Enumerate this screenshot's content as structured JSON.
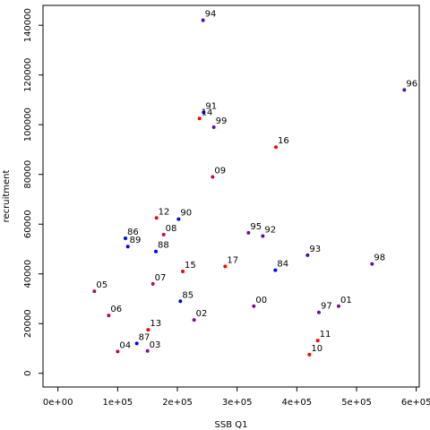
{
  "chart_data": {
    "type": "scatter",
    "title": "",
    "xlabel": "SSB Q1",
    "ylabel": "recruitment",
    "xlim": [
      -25000,
      605000
    ],
    "ylim": [
      -5500,
      148000
    ],
    "x_ticks": [
      0,
      100000,
      200000,
      300000,
      400000,
      500000,
      600000
    ],
    "x_tick_labels": [
      "0e+00",
      "1e+05",
      "2e+05",
      "3e+05",
      "4e+05",
      "5e+05",
      "6e+05"
    ],
    "y_ticks": [
      0,
      20000,
      40000,
      60000,
      80000,
      100000,
      120000,
      140000
    ],
    "y_tick_labels": [
      "0",
      "20000",
      "40000",
      "60000",
      "80000",
      "100000",
      "120000",
      "140000"
    ],
    "grid": false,
    "legend": "none",
    "points": [
      {
        "label": "94",
        "x": 243000,
        "y": 142000,
        "color": "#4b0ea8"
      },
      {
        "label": "96",
        "x": 580000,
        "y": 114000,
        "color": "#4b0ea8"
      },
      {
        "label": "91",
        "x": 244000,
        "y": 105000,
        "color": "#0000ff"
      },
      {
        "label": "14",
        "x": 237000,
        "y": 102500,
        "color": "#ff0000"
      },
      {
        "label": "99",
        "x": 261000,
        "y": 99000,
        "color": "#5d0fa0"
      },
      {
        "label": "16",
        "x": 365000,
        "y": 91000,
        "color": "#ff0000"
      },
      {
        "label": "09",
        "x": 259000,
        "y": 79000,
        "color": "#b40a5a"
      },
      {
        "label": "12",
        "x": 165000,
        "y": 62500,
        "color": "#ff0000"
      },
      {
        "label": "90",
        "x": 202000,
        "y": 62000,
        "color": "#0000ff"
      },
      {
        "label": "08",
        "x": 177000,
        "y": 55800,
        "color": "#b40a5a"
      },
      {
        "label": "86",
        "x": 113000,
        "y": 54300,
        "color": "#0000ff"
      },
      {
        "label": "89",
        "x": 117000,
        "y": 51000,
        "color": "#0000ff"
      },
      {
        "label": "88",
        "x": 164000,
        "y": 49000,
        "color": "#0000ff"
      },
      {
        "label": "95",
        "x": 319000,
        "y": 56500,
        "color": "#6b0fa0"
      },
      {
        "label": "92",
        "x": 343000,
        "y": 55200,
        "color": "#4b0ea8"
      },
      {
        "label": "93",
        "x": 418000,
        "y": 47500,
        "color": "#4b0ea8"
      },
      {
        "label": "98",
        "x": 526000,
        "y": 44000,
        "color": "#6b0fa0"
      },
      {
        "label": "84",
        "x": 364000,
        "y": 41500,
        "color": "#0000ff"
      },
      {
        "label": "17",
        "x": 280000,
        "y": 43000,
        "color": "#ff0000"
      },
      {
        "label": "15",
        "x": 209000,
        "y": 41000,
        "color": "#ff0000"
      },
      {
        "label": "05",
        "x": 61000,
        "y": 33000,
        "color": "#b40a5a"
      },
      {
        "label": "07",
        "x": 159000,
        "y": 36000,
        "color": "#b40a5a"
      },
      {
        "label": "85",
        "x": 205000,
        "y": 29000,
        "color": "#0000ff"
      },
      {
        "label": "00",
        "x": 328000,
        "y": 27000,
        "color": "#7d0f90"
      },
      {
        "label": "97",
        "x": 437000,
        "y": 24500,
        "color": "#6b0fa0"
      },
      {
        "label": "01",
        "x": 470000,
        "y": 27000,
        "color": "#7d0f90"
      },
      {
        "label": "06",
        "x": 85000,
        "y": 23300,
        "color": "#b40a5a"
      },
      {
        "label": "02",
        "x": 228000,
        "y": 21500,
        "color": "#7d0f90"
      },
      {
        "label": "13",
        "x": 151000,
        "y": 17500,
        "color": "#ff0000"
      },
      {
        "label": "11",
        "x": 435000,
        "y": 13200,
        "color": "#ff0000"
      },
      {
        "label": "87",
        "x": 132000,
        "y": 12000,
        "color": "#0000ff"
      },
      {
        "label": "04",
        "x": 100000,
        "y": 8800,
        "color": "#b40a5a"
      },
      {
        "label": "03",
        "x": 150000,
        "y": 9000,
        "color": "#7d0f90"
      },
      {
        "label": "10",
        "x": 421000,
        "y": 7500,
        "color": "#ff0000"
      }
    ]
  }
}
